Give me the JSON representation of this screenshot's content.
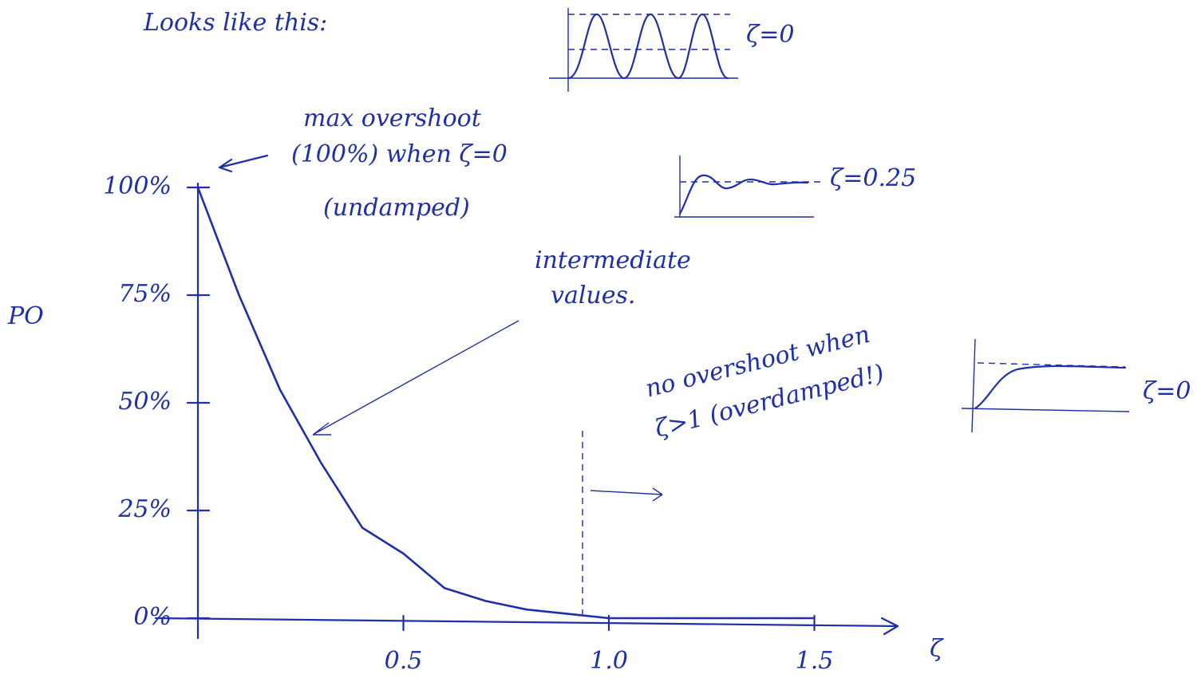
{
  "chart_data": {
    "type": "line",
    "heading": "Looks like this:",
    "ylabel": "PO",
    "xlabel": "ζ",
    "x": [
      0,
      0.1,
      0.2,
      0.3,
      0.4,
      0.5,
      0.6,
      0.7,
      0.8,
      0.9,
      1.0,
      1.1,
      1.2,
      1.3,
      1.4,
      1.5
    ],
    "values": [
      100,
      75,
      53,
      36,
      21,
      15,
      7,
      4,
      2,
      1,
      0,
      0,
      0,
      0,
      0,
      0
    ],
    "color": "#1f2fa8",
    "xlim": [
      0,
      1.75
    ],
    "ylim": [
      0,
      100
    ],
    "xticks": [
      0.5,
      {
        "value": 1,
        "label": "1.0"
      },
      1.5
    ],
    "yticks": [
      {
        "value": 0,
        "label": "0%"
      },
      {
        "value": 25,
        "label": "25%"
      },
      {
        "value": 50,
        "label": "50%"
      },
      {
        "value": 75,
        "label": "75%"
      },
      {
        "value": 100,
        "label": "100%"
      }
    ],
    "annotations": [
      {
        "lines": [
          "ζ=0"
        ]
      },
      {
        "lines": [
          "max overshoot",
          "(100%) when ζ=0",
          "(undamped)"
        ]
      },
      {
        "lines": [
          "ζ=0.25"
        ]
      },
      {
        "lines": [
          "intermediate",
          "values."
        ]
      },
      {
        "lines": [
          "no overshoot when",
          "ζ>1 (overdamped!)"
        ]
      },
      {
        "lines": [
          "ζ=0"
        ]
      }
    ]
  }
}
